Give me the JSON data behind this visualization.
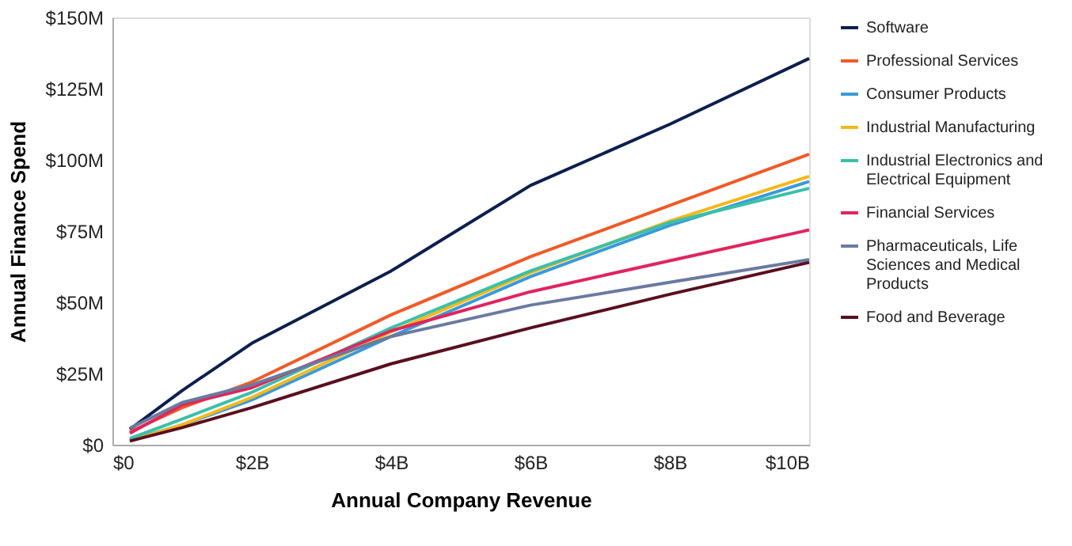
{
  "chart_data": {
    "type": "line",
    "xlabel": "Annual Company Revenue",
    "ylabel": "Annual Finance Spend",
    "x": [
      0.25,
      1,
      2,
      4,
      6,
      8,
      10
    ],
    "series": [
      {
        "name": "Software",
        "color": "#0c1f4f",
        "values": [
          5.4,
          19,
          35.6,
          61,
          91,
          112.5,
          135.6
        ]
      },
      {
        "name": "Professional Services",
        "color": "#f05a28",
        "values": [
          4.5,
          13,
          22,
          45.6,
          66,
          84,
          102
        ]
      },
      {
        "name": "Consumer Products",
        "color": "#3a9ad9",
        "values": [
          1.6,
          7,
          15.7,
          38,
          59,
          77,
          92.4
        ]
      },
      {
        "name": "Industrial Manufacturing",
        "color": "#f5b81c",
        "values": [
          1.3,
          7,
          16.6,
          39.6,
          60.4,
          78.5,
          94.2
        ]
      },
      {
        "name": "Industrial Electronics and Electrical Equipment",
        "color": "#3cbfa8",
        "values": [
          2.2,
          9,
          18.4,
          41,
          61,
          78,
          90
        ]
      },
      {
        "name": "Financial Services",
        "color": "#e0245e",
        "values": [
          4,
          14,
          20,
          40,
          53.7,
          64.6,
          75.4
        ]
      },
      {
        "name": "Pharmaceuticals, Life Sciences and Medical Products",
        "color": "#6a7aa0",
        "values": [
          5.8,
          14.8,
          21,
          38,
          49,
          57,
          65
        ]
      },
      {
        "name": "Food and Beverage",
        "color": "#5a0f1e",
        "values": [
          1.3,
          6,
          13,
          28.4,
          41,
          52.8,
          64
        ]
      }
    ],
    "xlim": [
      0,
      10
    ],
    "xticks": [
      {
        "value": 0,
        "label": "$0"
      },
      {
        "value": 2,
        "label": "$2B"
      },
      {
        "value": 4,
        "label": "$4B"
      },
      {
        "value": 6,
        "label": "$6B"
      },
      {
        "value": 8,
        "label": "$8B"
      },
      {
        "value": 10,
        "label": "$10B"
      }
    ],
    "ylim": [
      0,
      150
    ],
    "yticks": [
      {
        "value": 0,
        "label": "$0"
      },
      {
        "value": 25,
        "label": "$25M"
      },
      {
        "value": 50,
        "label": "$50M"
      },
      {
        "value": 75,
        "label": "$75M"
      },
      {
        "value": 100,
        "label": "$100M"
      },
      {
        "value": 125,
        "label": "$125M"
      },
      {
        "value": 150,
        "label": "$150M"
      }
    ],
    "grid": false,
    "legend": "right",
    "line_style": "solid",
    "marker": "none"
  }
}
